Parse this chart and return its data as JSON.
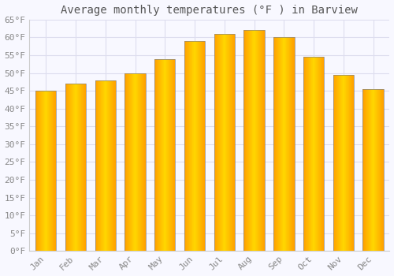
{
  "title": "Average monthly temperatures (°F ) in Barview",
  "months": [
    "Jan",
    "Feb",
    "Mar",
    "Apr",
    "May",
    "Jun",
    "Jul",
    "Aug",
    "Sep",
    "Oct",
    "Nov",
    "Dec"
  ],
  "values": [
    45,
    47,
    48,
    50,
    54,
    59,
    61,
    62,
    60,
    54.5,
    49.5,
    45.5
  ],
  "bar_color_center": "#FFD700",
  "bar_color_edge": "#FFA000",
  "bar_outline_color": "#888888",
  "ylim": [
    0,
    65
  ],
  "yticks": [
    0,
    5,
    10,
    15,
    20,
    25,
    30,
    35,
    40,
    45,
    50,
    55,
    60,
    65
  ],
  "ytick_labels": [
    "0°F",
    "5°F",
    "10°F",
    "15°F",
    "20°F",
    "25°F",
    "30°F",
    "35°F",
    "40°F",
    "45°F",
    "50°F",
    "55°F",
    "60°F",
    "65°F"
  ],
  "background_color": "#f8f8ff",
  "grid_color": "#ddddee",
  "title_fontsize": 10,
  "tick_fontsize": 8,
  "tick_font_color": "#888888",
  "bar_width": 0.7
}
